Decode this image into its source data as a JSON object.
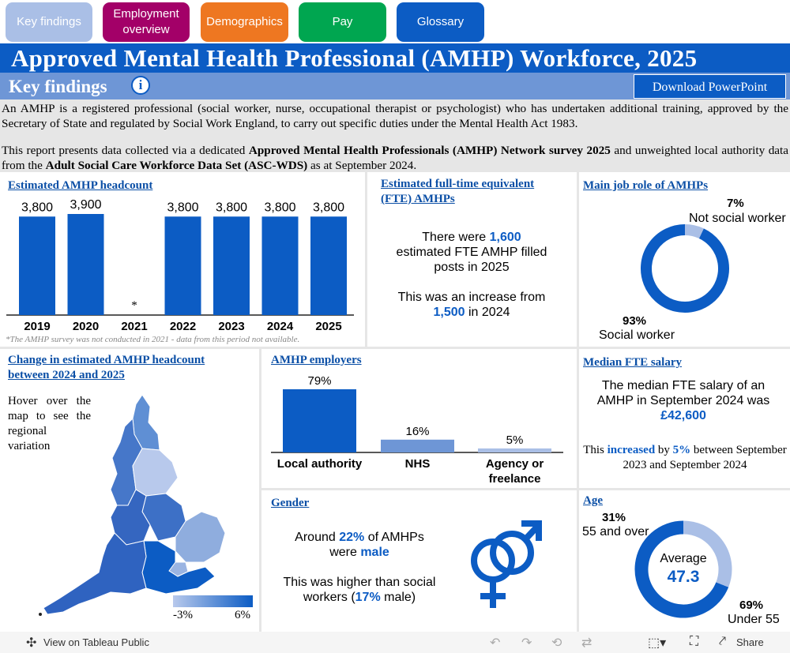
{
  "nav": {
    "key_findings": "Key findings",
    "employment": "Employment overview",
    "demographics": "Demographics",
    "pay": "Pay",
    "glossary": "Glossary"
  },
  "header": {
    "title": "Approved Mental Health Professional (AMHP) Workforce, 2025",
    "subtitle": "Key findings",
    "info_icon": "i",
    "download": "Download PowerPoint"
  },
  "intro": {
    "p1": "An AMHP is a registered professional (social worker, nurse, occupational therapist or psychologist) who has undertaken additional training, approved by the Secretary of State and regulated by Social Work England, to carry out specific duties under the Mental Health Act 1983.",
    "p2_a": "This report presents data collected via a dedicated ",
    "p2_b": "Approved Mental Health Professionals (AMHP) Network survey 2025",
    "p2_c": " and unweighted local authority data from the ",
    "p2_d": "Adult Social Care Workforce Data Set (ASC-WDS)",
    "p2_e": " as at September 2024."
  },
  "headcount": {
    "title": "Estimated AMHP headcount",
    "note": "*The AMHP survey was not conducted in 2021 - data from this period not available.",
    "star": "*"
  },
  "fte": {
    "title": "Estimated full-time equivalent (FTE) AMHPs",
    "l1": "There were ",
    "v1": "1,600",
    "l2": "estimated FTE AMHP filled",
    "l3": "posts in 2025",
    "l4": "This was an increase from",
    "v2": "1,500",
    "l5": " in 2024"
  },
  "job_role": {
    "title": "Main job role of AMHPs",
    "small_pct": "7%",
    "small_label": "Not social worker",
    "big_pct": "93%",
    "big_label": "Social worker",
    "values": [
      93,
      7
    ]
  },
  "change_map": {
    "title": "Change in estimated AMHP headcount between 2024 and 2025",
    "hover": "Hover over the map to see the regional variation",
    "legend_min": "-3%",
    "legend_max": "6%"
  },
  "employers": {
    "title": "AMHP employers"
  },
  "salary": {
    "title": "Median FTE salary",
    "l1": "The median FTE salary of an AMHP in September 2024 was",
    "v1": "£42,600",
    "l2a": "This ",
    "l2b": "increased",
    "l2c": " by ",
    "l2d": "5%",
    "l2e": " between September 2023 and September 2024"
  },
  "gender": {
    "title": "Gender",
    "l1": "Around ",
    "v1": "22%",
    "l2": " of AMHPs",
    "l3": "were ",
    "v2": "male",
    "l4": "This was higher than social",
    "l5": "workers (",
    "v3": "17%",
    "l6": " male)"
  },
  "age": {
    "title": "Age",
    "small_pct": "31%",
    "small_label": "55 and over",
    "avg_label": "Average",
    "avg_value": "47.3",
    "big_pct": "69%",
    "big_label": "Under 55",
    "values": [
      69,
      31
    ]
  },
  "footer": {
    "view": "View on Tableau Public",
    "share": "Share"
  },
  "colors": {
    "primary": "#0c5cc4",
    "light": "#aabfe6",
    "header_band": "#0c5cc4",
    "subheader_band": "#6e96d6"
  },
  "chart_data": [
    {
      "type": "bar",
      "title": "Estimated AMHP headcount",
      "categories": [
        "2019",
        "2020",
        "2021",
        "2022",
        "2023",
        "2024",
        "2025"
      ],
      "values": [
        3800,
        3900,
        null,
        3800,
        3800,
        3800,
        3800
      ],
      "labels": [
        "3,800",
        "3,900",
        "*",
        "3,800",
        "3,800",
        "3,800",
        "3,800"
      ]
    },
    {
      "type": "bar",
      "title": "AMHP employers",
      "categories": [
        "Local authority",
        "NHS",
        "Agency or freelance"
      ],
      "values": [
        79,
        16,
        5
      ],
      "labels": [
        "79%",
        "16%",
        "5%"
      ],
      "colors": [
        "#0c5cc4",
        "#6e96d6",
        "#aabfe6"
      ]
    }
  ]
}
